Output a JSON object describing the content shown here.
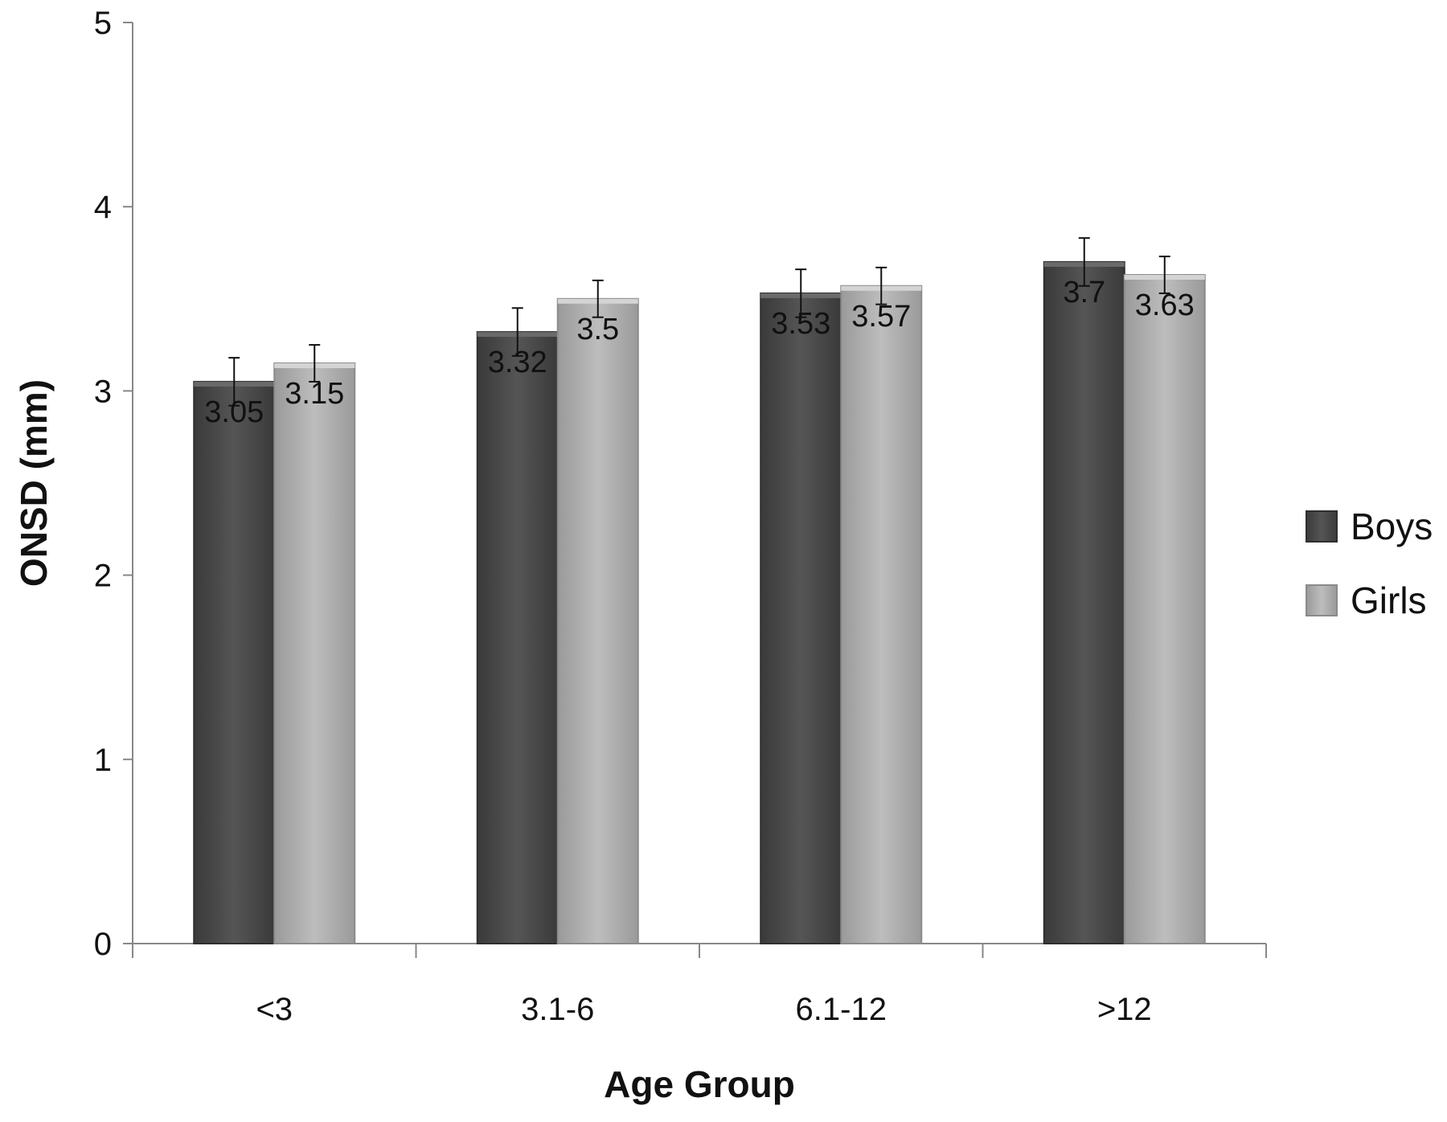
{
  "chart_data": {
    "type": "bar",
    "title": "",
    "xlabel": "Age Group",
    "ylabel": "ONSD (mm)",
    "ylim": [
      0,
      5
    ],
    "yticks": [
      "0",
      "1",
      "2",
      "3",
      "4",
      "5"
    ],
    "categories": [
      "<3",
      "3.1-6",
      "6.1-12",
      ">12"
    ],
    "series": [
      {
        "name": "Boys",
        "values": [
          3.05,
          3.32,
          3.53,
          3.7
        ],
        "labels": [
          "3.05",
          "3.32",
          "3.53",
          "3.7"
        ],
        "error": [
          0.13,
          0.13,
          0.13,
          0.13
        ],
        "color": "#4a4a4a"
      },
      {
        "name": "Girls",
        "values": [
          3.15,
          3.5,
          3.57,
          3.63
        ],
        "labels": [
          "3.15",
          "3.5",
          "3.57",
          "3.63"
        ],
        "error": [
          0.1,
          0.1,
          0.1,
          0.1
        ],
        "color": "#a8a8a8"
      }
    ],
    "grid": false,
    "legend_position": "right"
  }
}
